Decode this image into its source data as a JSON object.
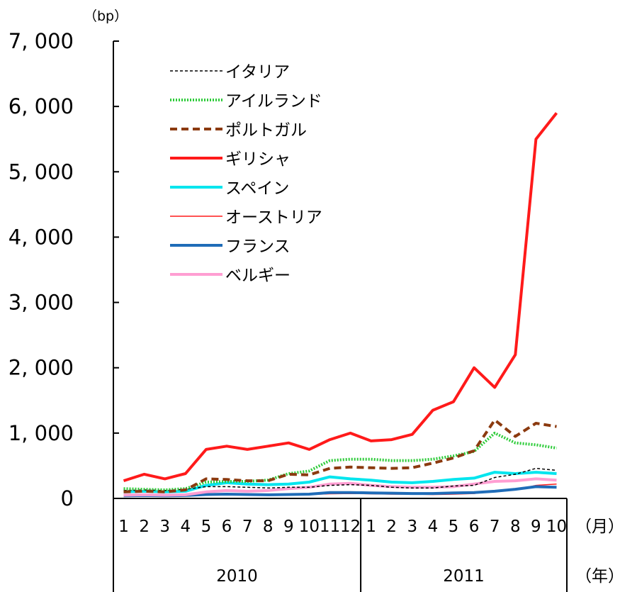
{
  "chart_data": {
    "type": "line",
    "y_unit": "（bp）",
    "ylim": [
      0,
      7000
    ],
    "y_ticks": [
      "0",
      "1, 000",
      "2, 000",
      "3, 000",
      "4, 000",
      "5, 000",
      "6, 000",
      "7, 000"
    ],
    "month_labels": [
      "1",
      "2",
      "3",
      "4",
      "5",
      "6",
      "7",
      "8",
      "9",
      "10",
      "11",
      "12",
      "1",
      "2",
      "3",
      "4",
      "5",
      "6",
      "7",
      "8",
      "9",
      "10"
    ],
    "month_suffix": "（月）",
    "year_labels": [
      "2010",
      "2011"
    ],
    "year_suffix": "（年）",
    "legend_position": "top-left",
    "x": [
      "2010-01",
      "2010-02",
      "2010-03",
      "2010-04",
      "2010-05",
      "2010-06",
      "2010-07",
      "2010-08",
      "2010-09",
      "2010-10",
      "2010-11",
      "2010-12",
      "2011-01",
      "2011-02",
      "2011-03",
      "2011-04",
      "2011-05",
      "2011-06",
      "2011-07",
      "2011-08",
      "2011-09",
      "2011-10"
    ],
    "series": [
      {
        "name": "イタリア",
        "color": "#000000",
        "style": "dashed",
        "values": [
          120,
          130,
          120,
          140,
          180,
          180,
          170,
          160,
          170,
          170,
          200,
          210,
          200,
          170,
          160,
          160,
          190,
          200,
          320,
          370,
          460,
          430
        ]
      },
      {
        "name": "アイルランド",
        "color": "#2ecc3a",
        "style": "dotted",
        "values": [
          150,
          140,
          130,
          150,
          250,
          260,
          260,
          280,
          380,
          420,
          580,
          600,
          600,
          580,
          580,
          600,
          650,
          720,
          1000,
          850,
          820,
          770
        ]
      },
      {
        "name": "ポルトガル",
        "color": "#8b3a0f",
        "style": "dashed",
        "values": [
          100,
          110,
          100,
          130,
          300,
          290,
          270,
          270,
          370,
          360,
          460,
          480,
          470,
          460,
          470,
          540,
          620,
          730,
          1200,
          950,
          1150,
          1100
        ]
      },
      {
        "name": "ギリシャ",
        "color": "#ff1a1a",
        "style": "solid",
        "values": [
          270,
          370,
          300,
          380,
          750,
          800,
          750,
          800,
          850,
          750,
          900,
          1000,
          880,
          900,
          980,
          1350,
          1480,
          2000,
          1700,
          2200,
          5500,
          5900
        ]
      },
      {
        "name": "スペイン",
        "color": "#00e5ee",
        "style": "solid",
        "values": [
          100,
          110,
          100,
          110,
          200,
          240,
          220,
          210,
          220,
          250,
          330,
          300,
          280,
          250,
          240,
          260,
          290,
          310,
          400,
          380,
          400,
          380
        ]
      },
      {
        "name": "オーストリア",
        "color": "#ff1a1a",
        "style": "solid-thin",
        "values": [
          60,
          60,
          55,
          55,
          70,
          70,
          65,
          60,
          60,
          60,
          70,
          75,
          70,
          65,
          65,
          60,
          65,
          75,
          120,
          130,
          200,
          220
        ]
      },
      {
        "name": "フランス",
        "color": "#1f6cb8",
        "style": "solid",
        "values": [
          40,
          45,
          40,
          45,
          60,
          65,
          60,
          55,
          60,
          65,
          90,
          90,
          85,
          80,
          75,
          75,
          85,
          90,
          110,
          140,
          180,
          170
        ]
      },
      {
        "name": "ベルギー",
        "color": "#ff9ed2",
        "style": "solid",
        "values": [
          50,
          55,
          50,
          55,
          100,
          120,
          110,
          120,
          150,
          170,
          220,
          230,
          200,
          180,
          170,
          170,
          180,
          220,
          260,
          270,
          300,
          280
        ]
      }
    ]
  }
}
